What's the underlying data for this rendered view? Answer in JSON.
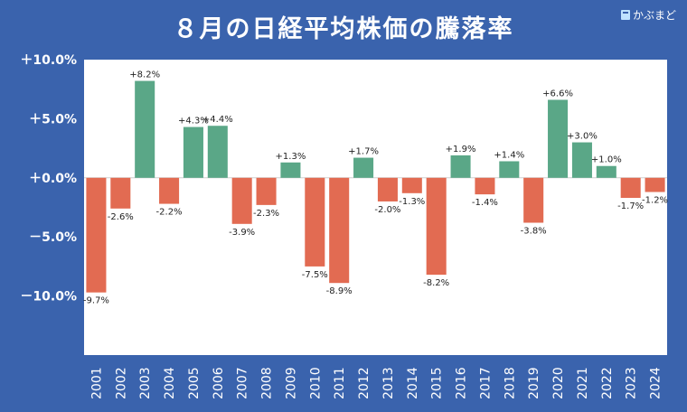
{
  "chart_data": {
    "type": "bar",
    "title": "８月の日経平均株価の騰落率",
    "categories": [
      "2001",
      "2002",
      "2003",
      "2004",
      "2005",
      "2006",
      "2007",
      "2008",
      "2009",
      "2010",
      "2011",
      "2012",
      "2013",
      "2014",
      "2015",
      "2016",
      "2017",
      "2018",
      "2019",
      "2020",
      "2021",
      "2022",
      "2023",
      "2024"
    ],
    "values": [
      -9.7,
      -2.6,
      8.2,
      -2.2,
      4.3,
      4.4,
      -3.9,
      -2.3,
      1.3,
      -7.5,
      -8.9,
      1.7,
      -2.0,
      -1.3,
      -8.2,
      1.9,
      -1.4,
      1.4,
      -3.8,
      6.6,
      3.0,
      1.0,
      -1.7,
      -1.2
    ],
    "data_labels": [
      "-9.7%",
      "-2.6%",
      "+8.2%",
      "-2.2%",
      "+4.3%",
      "+4.4%",
      "-3.9%",
      "-2.3%",
      "+1.3%",
      "-7.5%",
      "-8.9%",
      "+1.7%",
      "-2.0%",
      "-1.3%",
      "-8.2%",
      "+1.9%",
      "-1.4%",
      "+1.4%",
      "-3.8%",
      "+6.6%",
      "+3.0%",
      "+1.0%",
      "-1.7%",
      "-1.2%"
    ],
    "ylim": [
      -15,
      10
    ],
    "yticks": [
      10,
      5,
      0,
      -5,
      -10
    ],
    "ytick_labels": [
      "＋10.0%",
      "＋5.0%",
      "＋0.0%",
      "－5.0%",
      "－10.0%"
    ],
    "colors": {
      "positive": "#5aa787",
      "negative": "#e26b52",
      "plot_bg": "#ffffff",
      "page_bg": "#3a63ad"
    },
    "grid": false,
    "legend": "none",
    "xlabel": "",
    "ylabel": ""
  },
  "brand": {
    "name": "かぶまど",
    "icon": "kabumado-logo-icon"
  }
}
